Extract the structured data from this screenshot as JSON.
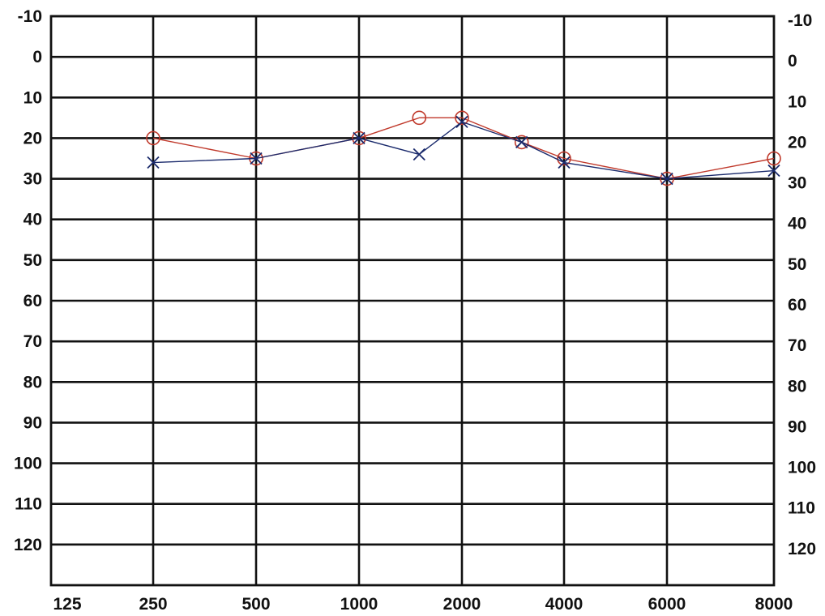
{
  "chart_data": {
    "type": "line",
    "x_tick_labels": [
      "125",
      "250",
      "500",
      "1000",
      "2000",
      "4000",
      "6000",
      "8000"
    ],
    "y_tick_labels": [
      "-10",
      "0",
      "10",
      "20",
      "30",
      "40",
      "50",
      "60",
      "70",
      "80",
      "90",
      "100",
      "110",
      "120"
    ],
    "ylim": [
      -10,
      130
    ],
    "y_inverted": true,
    "grid": true,
    "series": [
      {
        "marker": "circle",
        "color": "#c0392b",
        "points": [
          {
            "x": 250,
            "y": 20
          },
          {
            "x": 500,
            "y": 25
          },
          {
            "x": 1000,
            "y": 20
          },
          {
            "x": 1500,
            "y": 15
          },
          {
            "x": 2000,
            "y": 15
          },
          {
            "x": 3000,
            "y": 21
          },
          {
            "x": 4000,
            "y": 25
          },
          {
            "x": 6000,
            "y": 30
          },
          {
            "x": 8000,
            "y": 25
          }
        ]
      },
      {
        "marker": "cross",
        "color": "#1a2a6c",
        "points": [
          {
            "x": 250,
            "y": 26
          },
          {
            "x": 500,
            "y": 25
          },
          {
            "x": 1000,
            "y": 20
          },
          {
            "x": 1500,
            "y": 24
          },
          {
            "x": 2000,
            "y": 16
          },
          {
            "x": 3000,
            "y": 21
          },
          {
            "x": 4000,
            "y": 26
          },
          {
            "x": 6000,
            "y": 30
          },
          {
            "x": 8000,
            "y": 28
          }
        ]
      }
    ]
  }
}
